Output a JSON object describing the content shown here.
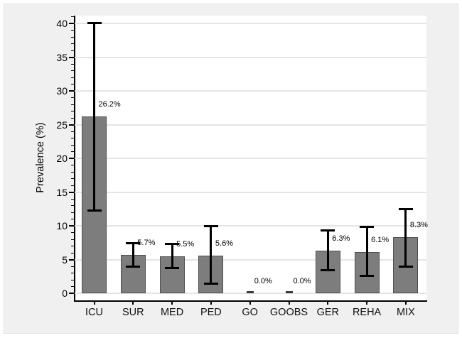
{
  "chart_data": {
    "type": "bar",
    "title": "",
    "xlabel": "",
    "ylabel": "Prevalence (%)",
    "categories": [
      "ICU",
      "SUR",
      "MED",
      "PED",
      "GO",
      "GOOBS",
      "GER",
      "REHA",
      "MIX"
    ],
    "values": [
      26.2,
      5.7,
      5.5,
      5.6,
      0.0,
      0.0,
      6.3,
      6.1,
      8.3
    ],
    "data_labels": [
      "26.2%",
      "5.7%",
      "5.5%",
      "5.6%",
      "0.0%",
      "0.0%",
      "6.3%",
      "6.1%",
      "8.3%"
    ],
    "error_low": [
      12.3,
      3.9,
      3.7,
      1.4,
      null,
      null,
      3.4,
      2.6,
      3.9
    ],
    "error_high": [
      40.1,
      7.4,
      7.3,
      9.9,
      null,
      null,
      9.3,
      9.8,
      12.5
    ],
    "ylim": [
      0,
      42
    ],
    "y_major_ticks": [
      0,
      5,
      10,
      15,
      20,
      25,
      30,
      35,
      40
    ],
    "y_minor_tick_interval": 1,
    "grid": "horizontal-major",
    "legend": "none",
    "colors": {
      "panel_background": "#f0f0f0",
      "plot_background": "#ffffff",
      "gridline": "#e4e4e4",
      "bar_fill": "#7d7d7d",
      "bar_border": "#4f4f4f",
      "error_bar": "#000000",
      "text": "#000000"
    }
  }
}
